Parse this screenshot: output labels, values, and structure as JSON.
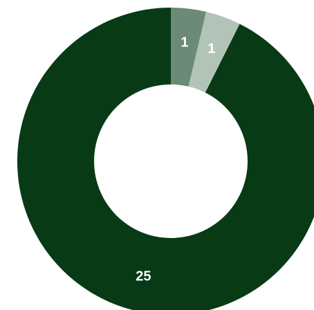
{
  "chart_data": {
    "type": "pie",
    "variant": "donut",
    "title": "",
    "slices": [
      {
        "value": 1,
        "label": "1",
        "color": "#6b8a78"
      },
      {
        "value": 1,
        "label": "1",
        "color": "#b2c4b8"
      },
      {
        "value": 25,
        "label": "25",
        "color": "#083a16"
      }
    ],
    "start_angle_deg": 0,
    "direction": "clockwise",
    "legend": "none",
    "data_labels": true
  }
}
